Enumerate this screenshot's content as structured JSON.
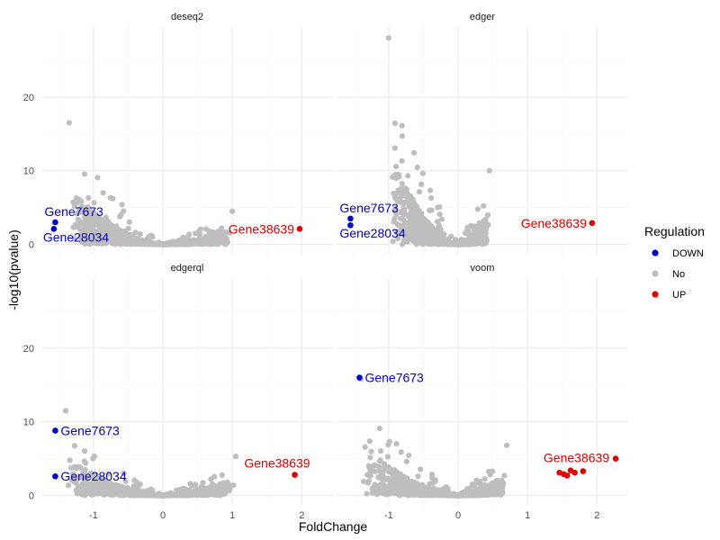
{
  "chart_data": {
    "type": "scatter",
    "xlabel": "FoldChange",
    "ylabel": "-log10(pvalue)",
    "xlim": [
      -1.75,
      2.45
    ],
    "ylim": [
      -1.4,
      29.5
    ],
    "x_ticks": [
      -1,
      0,
      1,
      2
    ],
    "y_ticks": [
      0,
      10,
      20
    ],
    "colors": {
      "DOWN": "#0000cc",
      "No": "#bebebe",
      "UP": "#dd0000"
    },
    "legend": {
      "title": "Regulation",
      "position": "right",
      "items": [
        {
          "key": "DOWN",
          "label": "DOWN",
          "glyph": "a"
        },
        {
          "key": "No",
          "label": "No",
          "glyph": "a"
        },
        {
          "key": "UP",
          "label": "UP",
          "glyph": "a"
        }
      ]
    },
    "panels": [
      {
        "name": "deseq2",
        "peak_left": {
          "x": -1.35,
          "y": 16.5
        },
        "peak_right": {
          "x": 1.0,
          "y": 4.5
        },
        "highlighted": [
          {
            "x": -1.55,
            "y": 3.0,
            "reg": "DOWN",
            "label": "Gene7673"
          },
          {
            "x": -1.57,
            "y": 2.1,
            "reg": "DOWN",
            "label": "Gene28034"
          },
          {
            "x": 1.97,
            "y": 2.1,
            "reg": "UP",
            "label": "Gene38639"
          }
        ]
      },
      {
        "name": "edger",
        "peak_left": {
          "x": -1.0,
          "y": 28.0
        },
        "peak_right": {
          "x": 0.45,
          "y": 10.0
        },
        "highlighted": [
          {
            "x": -1.55,
            "y": 3.5,
            "reg": "DOWN",
            "label": "Gene7673"
          },
          {
            "x": -1.55,
            "y": 2.6,
            "reg": "DOWN",
            "label": "Gene28034"
          },
          {
            "x": 1.93,
            "y": 2.9,
            "reg": "UP",
            "label": "Gene38639"
          }
        ]
      },
      {
        "name": "edgerql",
        "peak_left": {
          "x": -1.4,
          "y": 11.5
        },
        "peak_right": {
          "x": 1.05,
          "y": 5.3
        },
        "highlighted": [
          {
            "x": -1.55,
            "y": 8.8,
            "reg": "DOWN",
            "label": "Gene7673"
          },
          {
            "x": -1.55,
            "y": 2.6,
            "reg": "DOWN",
            "label": "Gene28034"
          },
          {
            "x": 1.9,
            "y": 2.8,
            "reg": "UP",
            "label": "Gene38639"
          }
        ]
      },
      {
        "name": "voom",
        "peak_left": {
          "x": -1.4,
          "y": 15.8
        },
        "peak_right": {
          "x": 0.7,
          "y": 6.8
        },
        "highlighted": [
          {
            "x": -1.42,
            "y": 16.0,
            "reg": "DOWN",
            "label": "Gene7673"
          },
          {
            "x": 2.27,
            "y": 5.0,
            "reg": "UP",
            "label": "Gene38639"
          },
          {
            "x": 1.8,
            "y": 3.3,
            "reg": "UP",
            "label": ""
          },
          {
            "x": 1.68,
            "y": 3.1,
            "reg": "UP",
            "label": ""
          },
          {
            "x": 1.62,
            "y": 3.4,
            "reg": "UP",
            "label": ""
          },
          {
            "x": 1.57,
            "y": 2.7,
            "reg": "UP",
            "label": ""
          },
          {
            "x": 1.52,
            "y": 2.9,
            "reg": "UP",
            "label": ""
          },
          {
            "x": 1.46,
            "y": 3.1,
            "reg": "UP",
            "label": ""
          }
        ]
      }
    ]
  }
}
